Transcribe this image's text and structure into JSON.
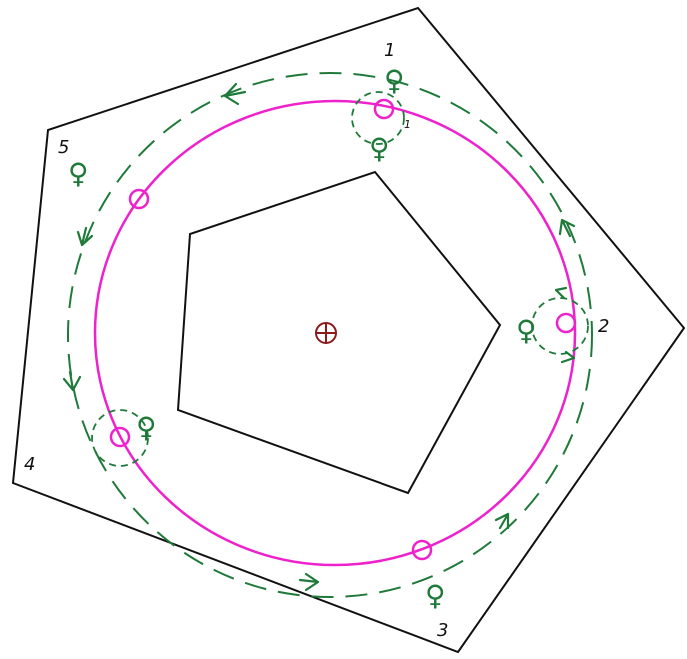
{
  "colors": {
    "outline": "#111111",
    "orbit": "#ee22cc",
    "path": "#1f7a3a",
    "center": "#8b1a1a"
  },
  "icons": {
    "planet": "venus-symbol",
    "center": "earth-symbol",
    "direction": "arrow"
  },
  "labels": {
    "p1": "1",
    "p2": "2",
    "p3": "3",
    "p4": "4",
    "p5": "5",
    "small_mark_1": "1"
  },
  "glyphs": {
    "venus": "♀"
  }
}
